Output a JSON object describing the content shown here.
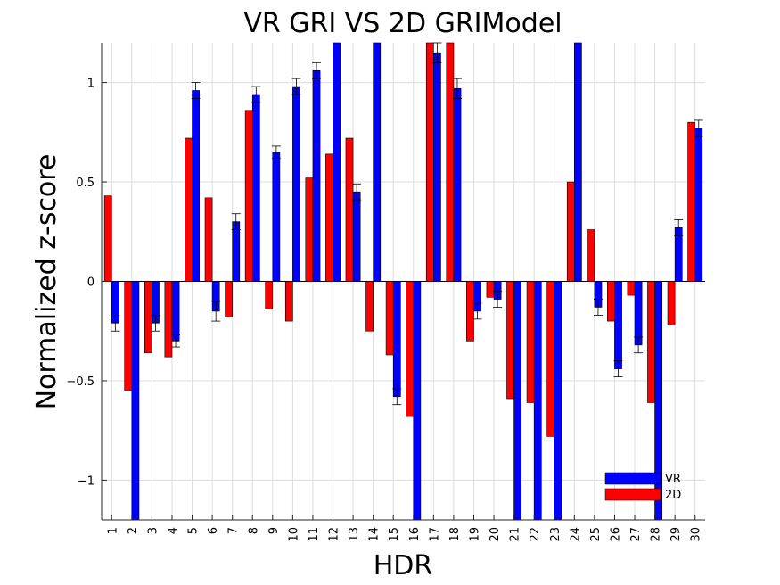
{
  "chart_data": {
    "type": "bar",
    "title": "VR GRI VS 2D GRIModel",
    "xlabel": "HDR",
    "ylabel": "Normalized z-score",
    "categories": [
      "1",
      "2",
      "3",
      "4",
      "5",
      "6",
      "7",
      "8",
      "9",
      "10",
      "11",
      "12",
      "13",
      "14",
      "15",
      "16",
      "17",
      "18",
      "19",
      "20",
      "21",
      "22",
      "23",
      "24",
      "25",
      "26",
      "27",
      "28",
      "29",
      "30"
    ],
    "ylim": [
      -1.2,
      1.2
    ],
    "yticks": [
      -1,
      -0.5,
      0,
      0.5,
      1
    ],
    "ytick_labels": [
      "−1",
      "−0.5",
      "0",
      "0.5",
      "1"
    ],
    "grid": true,
    "legend_position": "bottom-right",
    "series": [
      {
        "name": "VR",
        "color": "#0000ff",
        "values": [
          -0.21,
          -1.3,
          -0.21,
          -0.3,
          0.96,
          -0.15,
          0.3,
          0.94,
          0.65,
          0.98,
          1.06,
          1.3,
          0.45,
          1.3,
          -0.58,
          -1.3,
          1.15,
          0.97,
          -0.15,
          -0.09,
          -1.3,
          -1.3,
          -1.3,
          1.3,
          -0.13,
          -0.44,
          -0.32,
          -1.3,
          0.27,
          0.77
        ],
        "error": [
          0.04,
          0,
          0.04,
          0.03,
          0.04,
          0.05,
          0.04,
          0.04,
          0.03,
          0.04,
          0.04,
          0,
          0.04,
          0,
          0.04,
          0,
          0.05,
          0.05,
          0.04,
          0.04,
          0,
          0,
          0.05,
          0,
          0.04,
          0.04,
          0.04,
          0,
          0.04,
          0.04
        ]
      },
      {
        "name": "2D",
        "color": "#ff0000",
        "values": [
          0.43,
          -0.55,
          -0.36,
          -0.38,
          0.72,
          0.42,
          -0.18,
          0.86,
          -0.14,
          -0.2,
          0.52,
          0.64,
          0.72,
          -0.25,
          -0.37,
          -0.68,
          1.3,
          1.3,
          -0.3,
          -0.08,
          -0.59,
          -0.61,
          -0.78,
          0.5,
          0.26,
          -0.2,
          -0.07,
          -0.61,
          -0.22,
          0.8
        ]
      }
    ]
  }
}
